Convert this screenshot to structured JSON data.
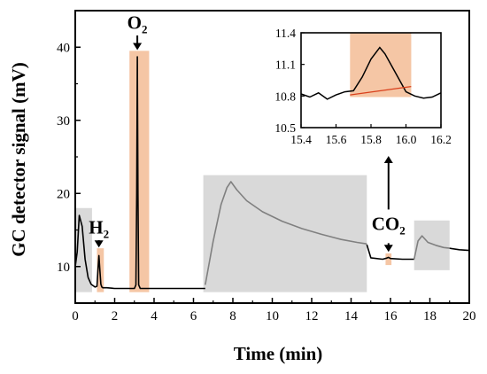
{
  "chart_data": [
    {
      "type": "line",
      "title": "",
      "xlabel": "Time (min)",
      "ylabel": "GC detector signal (mV)",
      "xlim": [
        0,
        20
      ],
      "ylim": [
        5,
        45
      ],
      "xticks": [
        "0",
        "2",
        "4",
        "6",
        "8",
        "10",
        "12",
        "14",
        "16",
        "18",
        "20"
      ],
      "yticks": [
        "10",
        "20",
        "30",
        "40"
      ],
      "grid": false,
      "series": [
        {
          "color": "#000000",
          "x": [
            0.0,
            0.1,
            0.2,
            0.35,
            0.5,
            0.65,
            0.8,
            1.0,
            1.1,
            1.15,
            1.2,
            1.25,
            1.3,
            1.35,
            1.4,
            1.6,
            2.0,
            2.5,
            3.0,
            3.08,
            3.12,
            3.15,
            3.18,
            3.22,
            3.3,
            3.5,
            4.0,
            5.0,
            6.0,
            6.6
          ],
          "values": [
            10.0,
            12.0,
            17.0,
            15.5,
            11.0,
            8.5,
            7.6,
            7.2,
            7.3,
            9.5,
            11.5,
            9.5,
            7.6,
            7.2,
            7.1,
            7.1,
            7.0,
            7.0,
            7.0,
            7.5,
            20.0,
            38.7,
            20.0,
            7.5,
            7.0,
            7.0,
            7.0,
            7.0,
            7.0,
            7.0
          ]
        },
        {
          "color": "#808080",
          "x": [
            6.6,
            7.0,
            7.4,
            7.7,
            7.9,
            8.2,
            8.7,
            9.5,
            10.5,
            11.5,
            12.5,
            13.5,
            14.3,
            14.8
          ],
          "values": [
            7.5,
            13.5,
            18.5,
            20.8,
            21.6,
            20.5,
            19.0,
            17.5,
            16.2,
            15.2,
            14.4,
            13.7,
            13.3,
            13.1
          ]
        },
        {
          "color": "#000000",
          "x": [
            14.8,
            15.0,
            15.6,
            15.8,
            15.9,
            16.0,
            16.6,
            17.2
          ],
          "values": [
            13.0,
            11.2,
            11.0,
            11.15,
            11.25,
            11.1,
            11.0,
            11.0
          ]
        },
        {
          "color": "#808080",
          "x": [
            17.2,
            17.4,
            17.6,
            17.9,
            18.3,
            18.7,
            19.0
          ],
          "values": [
            11.0,
            13.5,
            14.2,
            13.3,
            12.9,
            12.6,
            12.5
          ]
        },
        {
          "color": "#000000",
          "x": [
            19.0,
            19.5,
            20.0
          ],
          "values": [
            12.5,
            12.3,
            12.2
          ]
        }
      ],
      "highlights": [
        {
          "color": "#f5c6a5",
          "x": [
            1.1,
            1.45
          ],
          "y": [
            6.5,
            12.5
          ]
        },
        {
          "color": "#f5c6a5",
          "x": [
            2.75,
            3.75
          ],
          "y": [
            6.5,
            39.5
          ]
        },
        {
          "color": "#d9d9d9",
          "x": [
            6.5,
            14.8
          ],
          "y": [
            6.5,
            22.5
          ]
        },
        {
          "color": "#d9d9d9",
          "x": [
            17.2,
            19.0
          ],
          "y": [
            9.5,
            16.3
          ]
        },
        {
          "color": "#d9d9d9",
          "x": [
            0.0,
            0.85
          ],
          "y": [
            6.5,
            18.0
          ]
        },
        {
          "color": "#f5c6a5",
          "x": [
            15.75,
            16.05
          ],
          "y": [
            10.2,
            11.8
          ]
        }
      ],
      "annotations": [
        {
          "text": "H",
          "sub": "2",
          "x": 1.2,
          "y": 14.5
        },
        {
          "text": "O",
          "sub": "2",
          "x": 3.15,
          "y": 42.5
        },
        {
          "text": "CO",
          "sub": "2",
          "x": 15.9,
          "y": 15.0
        }
      ]
    },
    {
      "type": "line",
      "title": "",
      "xlim": [
        15.4,
        16.2
      ],
      "ylim": [
        10.5,
        11.4
      ],
      "xticks": [
        "15.4",
        "15.6",
        "15.8",
        "16.0",
        "16.2"
      ],
      "yticks": [
        "10.5",
        "10.8",
        "11.1",
        "11.4"
      ],
      "grid": false,
      "series": [
        {
          "color": "#000000",
          "x": [
            15.4,
            15.45,
            15.5,
            15.55,
            15.6,
            15.65,
            15.7,
            15.75,
            15.8,
            15.85,
            15.88,
            15.92,
            15.97,
            16.0,
            16.05,
            16.1,
            16.15,
            16.2
          ],
          "values": [
            10.82,
            10.79,
            10.83,
            10.77,
            10.81,
            10.84,
            10.85,
            10.98,
            11.15,
            11.26,
            11.2,
            11.08,
            10.93,
            10.84,
            10.8,
            10.78,
            10.79,
            10.83
          ]
        },
        {
          "color": "#d9401c",
          "x": [
            15.68,
            16.03
          ],
          "values": [
            10.81,
            10.89
          ]
        }
      ],
      "highlights": [
        {
          "color": "#f5c6a5",
          "x": [
            15.68,
            16.03
          ],
          "y": [
            10.79,
            11.4
          ]
        }
      ]
    }
  ]
}
